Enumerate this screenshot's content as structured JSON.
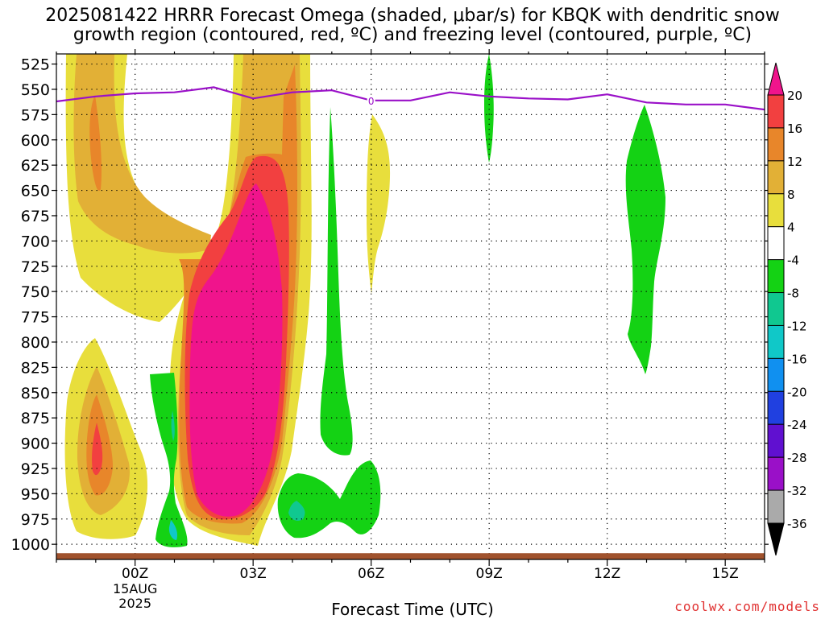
{
  "title_line1": "2025081422 HRRR Forecast Omega (shaded, μbar/s) for KBQK with dendritic snow",
  "title_line2": "growth region (contoured, red, ºC) and freezing level (contoured, purple, ºC)",
  "xlabel": "Forecast Time (UTC)",
  "credit": "coolwx.com/models",
  "colors": {
    "yellow": "#e8de3c",
    "gold": "#e2b036",
    "orange": "#e8862a",
    "red": "#f24040",
    "magenta": "#f0148c",
    "green": "#14d214",
    "teal": "#10c890",
    "cyan": "#10c8c8",
    "purple": "#9a10c8",
    "ground": "#a0522d"
  },
  "chart_data": {
    "type": "heatmap",
    "title": "2025081422 HRRR Forecast Omega (shaded, μbar/s) for KBQK with dendritic snow growth region (contoured, red, ºC) and freezing level (contoured, purple, ºC)",
    "xlabel": "Forecast Time (UTC)",
    "ylabel": "",
    "x_ticks": [
      "00Z",
      "03Z",
      "06Z",
      "09Z",
      "12Z",
      "15Z"
    ],
    "x_tick_hours": [
      0,
      3,
      6,
      9,
      12,
      15
    ],
    "x_sublabels": [
      "15AUG",
      "2025"
    ],
    "xlim": [
      -2,
      16
    ],
    "y_ticks": [
      525,
      550,
      575,
      600,
      625,
      650,
      675,
      700,
      725,
      750,
      775,
      800,
      825,
      850,
      875,
      900,
      925,
      950,
      975,
      1000
    ],
    "ylim": [
      515,
      1015
    ],
    "grid": true,
    "colorbar": {
      "labels": [
        "20",
        "16",
        "12",
        "8",
        "4",
        "-4",
        "-8",
        "-12",
        "-16",
        "-20",
        "-24",
        "-28",
        "-32",
        "-36"
      ],
      "levels": [
        20,
        16,
        12,
        8,
        4,
        -4,
        -8,
        -12,
        -16,
        -20,
        -24,
        -28,
        -32,
        -36
      ],
      "colors": [
        "#f0148c",
        "#f24040",
        "#e8862a",
        "#e2b036",
        "#e8de3c",
        "#ffffff",
        "#14d214",
        "#10c890",
        "#10c8c8",
        "#1090f0",
        "#2040e0",
        "#6010d0",
        "#9a10c8",
        "#aaaaaa",
        "#000000"
      ]
    },
    "freezing_level": {
      "hours": [
        -2,
        -1,
        0,
        1,
        2,
        3,
        4,
        5,
        6,
        7,
        8,
        9,
        10,
        11,
        12,
        13,
        14,
        15,
        16
      ],
      "pressure": [
        562,
        557,
        554,
        553,
        548,
        559,
        553,
        551,
        561,
        561,
        553,
        557,
        559,
        560,
        555,
        563,
        565,
        565,
        570
      ],
      "label": "0"
    },
    "ground_level_hpa": 1012
  }
}
